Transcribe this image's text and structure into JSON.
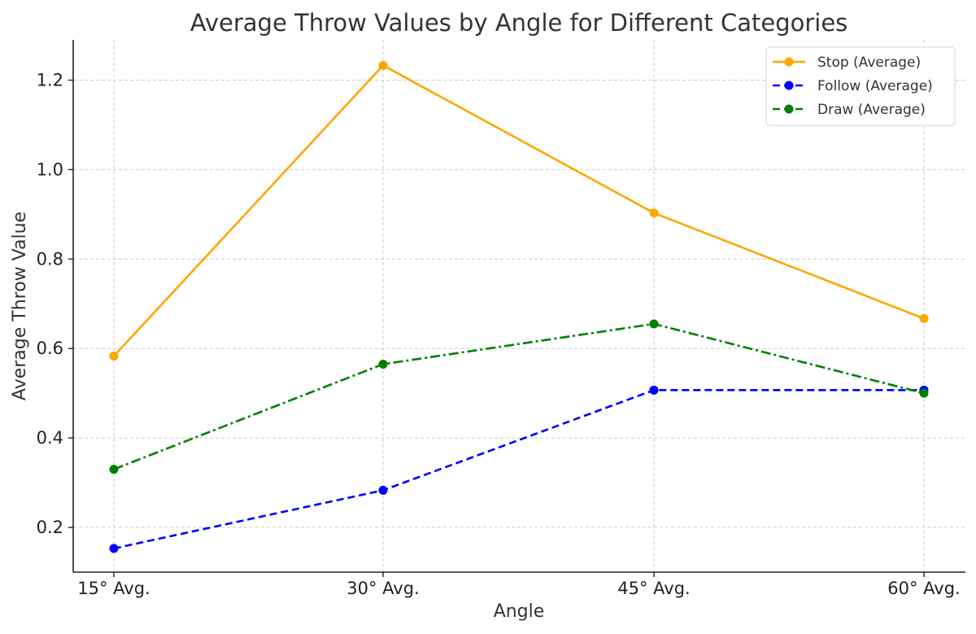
{
  "chart_data": {
    "type": "line",
    "title": "Average Throw Values by Angle for Different Categories",
    "xlabel": "Angle",
    "ylabel": "Average Throw Value",
    "categories": [
      "15° Avg.",
      "30° Avg.",
      "45° Avg.",
      "60° Avg."
    ],
    "ylim": [
      0.1,
      1.29
    ],
    "yticks": [
      "0.2",
      "0.4",
      "0.6",
      "0.8",
      "1.0",
      "1.2"
    ],
    "grid": true,
    "legend_position": "top-right",
    "series": [
      {
        "name": "Stop (Average)",
        "values": [
          0.583,
          1.233,
          0.903,
          0.667
        ],
        "color": "#ffa500",
        "line_style": "solid"
      },
      {
        "name": "Follow (Average)",
        "values": [
          0.153,
          0.283,
          0.507,
          0.507
        ],
        "color": "#0000ff",
        "line_style": "dashed"
      },
      {
        "name": "Draw (Average)",
        "values": [
          0.33,
          0.565,
          0.655,
          0.5
        ],
        "color": "#008000",
        "line_style": "dashdot"
      }
    ]
  }
}
